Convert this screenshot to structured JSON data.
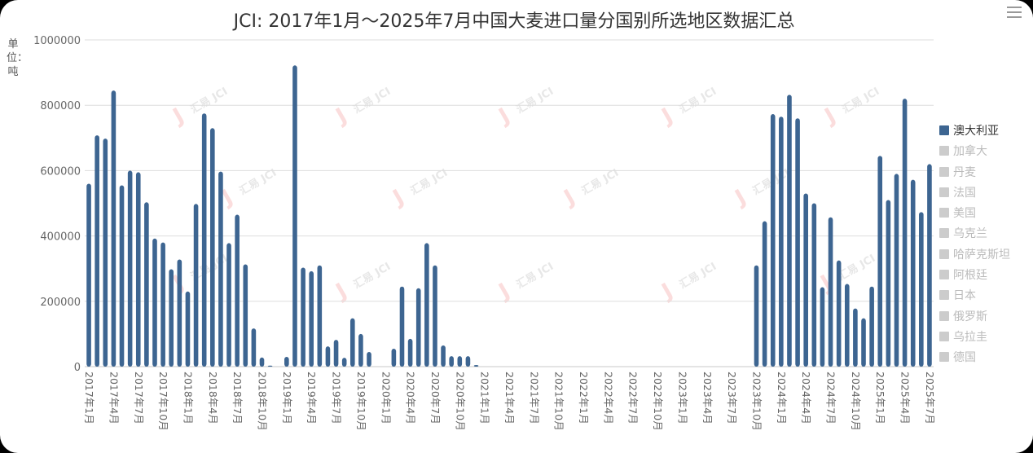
{
  "title": "JCI: 2017年1月～2025年7月中国大麦进口量分国别所选地区数据汇总",
  "y_unit": "单位：吨",
  "menu_icon": "hamburger-menu-icon",
  "watermark": "汇易 JCI",
  "colors": {
    "series": "#3d6591",
    "inactive": "#cccccc",
    "grid": "#dddddd",
    "axis_text": "#666666",
    "legend_active_text": "#333333",
    "legend_inactive_text": "#bbbbbb"
  },
  "legend": [
    {
      "name": "澳大利亚",
      "active": true
    },
    {
      "name": "加拿大",
      "active": false
    },
    {
      "name": "丹麦",
      "active": false
    },
    {
      "name": "法国",
      "active": false
    },
    {
      "name": "美国",
      "active": false
    },
    {
      "name": "乌克兰",
      "active": false
    },
    {
      "name": "哈萨克斯坦",
      "active": false
    },
    {
      "name": "阿根廷",
      "active": false
    },
    {
      "name": "日本",
      "active": false
    },
    {
      "name": "俄罗斯",
      "active": false
    },
    {
      "name": "乌拉圭",
      "active": false
    },
    {
      "name": "德国",
      "active": false
    }
  ],
  "chart_data": {
    "type": "bar",
    "title": "JCI: 2017年1月～2025年7月中国大麦进口量分国别所选地区数据汇总",
    "ylabel": "单位：吨",
    "ylim": [
      0,
      1000000
    ],
    "yticks": [
      "0",
      "200000",
      "400000",
      "600000",
      "800000",
      "1000000"
    ],
    "grid": true,
    "legend_position": "right",
    "x_tick_labels": [
      "2017年1月",
      "2017年4月",
      "2017年7月",
      "2017年10月",
      "2018年1月",
      "2018年4月",
      "2018年7月",
      "2018年10月",
      "2019年1月",
      "2019年4月",
      "2019年7月",
      "2019年10月",
      "2020年1月",
      "2020年4月",
      "2020年7月",
      "2020年10月",
      "2021年1月",
      "2021年4月",
      "2021年7月",
      "2021年10月",
      "2022年1月",
      "2022年4月",
      "2022年7月",
      "2022年10月",
      "2023年1月",
      "2023年4月",
      "2023年7月",
      "2023年10月",
      "2024年1月",
      "2024年4月",
      "2024年7月",
      "2024年10月",
      "2025年1月",
      "2025年4月",
      "2025年7月"
    ],
    "categories": [
      "2017年1月",
      "2017年2月",
      "2017年3月",
      "2017年4月",
      "2017年5月",
      "2017年6月",
      "2017年7月",
      "2017年8月",
      "2017年9月",
      "2017年10月",
      "2017年11月",
      "2017年12月",
      "2018年1月",
      "2018年2月",
      "2018年3月",
      "2018年4月",
      "2018年5月",
      "2018年6月",
      "2018年7月",
      "2018年8月",
      "2018年9月",
      "2018年10月",
      "2018年11月",
      "2018年12月",
      "2019年1月",
      "2019年2月",
      "2019年3月",
      "2019年4月",
      "2019年5月",
      "2019年6月",
      "2019年7月",
      "2019年8月",
      "2019年9月",
      "2019年10月",
      "2019年11月",
      "2019年12月",
      "2020年1月",
      "2020年2月",
      "2020年3月",
      "2020年4月",
      "2020年5月",
      "2020年6月",
      "2020年7月",
      "2020年8月",
      "2020年9月",
      "2020年10月",
      "2020年11月",
      "2020年12月",
      "2021年1月",
      "2021年2月",
      "2021年3月",
      "2021年4月",
      "2021年5月",
      "2021年6月",
      "2021年7月",
      "2021年8月",
      "2021年9月",
      "2021年10月",
      "2021年11月",
      "2021年12月",
      "2022年1月",
      "2022年2月",
      "2022年3月",
      "2022年4月",
      "2022年5月",
      "2022年6月",
      "2022年7月",
      "2022年8月",
      "2022年9月",
      "2022年10月",
      "2022年11月",
      "2022年12月",
      "2023年1月",
      "2023年2月",
      "2023年3月",
      "2023年4月",
      "2023年5月",
      "2023年6月",
      "2023年7月",
      "2023年8月",
      "2023年9月",
      "2023年10月",
      "2023年11月",
      "2023年12月",
      "2024年1月",
      "2024年2月",
      "2024年3月",
      "2024年4月",
      "2024年5月",
      "2024年6月",
      "2024年7月",
      "2024年8月",
      "2024年9月",
      "2024年10月",
      "2024年11月",
      "2024年12月",
      "2025年1月",
      "2025年2月",
      "2025年3月",
      "2025年4月",
      "2025年5月",
      "2025年6月",
      "2025年7月"
    ],
    "series": [
      {
        "name": "澳大利亚",
        "values": [
          560000,
          708000,
          698000,
          845000,
          555000,
          600000,
          595000,
          503000,
          392000,
          380000,
          298000,
          328000,
          230000,
          498000,
          775000,
          730000,
          597000,
          378000,
          465000,
          313000,
          117000,
          28000,
          3000,
          0,
          30000,
          922000,
          303000,
          292000,
          310000,
          62000,
          82000,
          27000,
          148000,
          100000,
          45000,
          0,
          0,
          55000,
          245000,
          85000,
          240000,
          378000,
          310000,
          65000,
          32000,
          32000,
          32000,
          5000,
          0,
          0,
          0,
          0,
          0,
          0,
          0,
          0,
          0,
          0,
          0,
          0,
          0,
          0,
          0,
          0,
          0,
          0,
          0,
          0,
          0,
          0,
          0,
          0,
          0,
          0,
          0,
          0,
          0,
          0,
          0,
          0,
          0,
          310000,
          445000,
          773000,
          765000,
          832000,
          760000,
          530000,
          500000,
          243000,
          457000,
          325000,
          253000,
          178000,
          148000,
          245000,
          645000,
          510000,
          590000,
          820000,
          572000,
          473000,
          620000
        ]
      }
    ]
  }
}
